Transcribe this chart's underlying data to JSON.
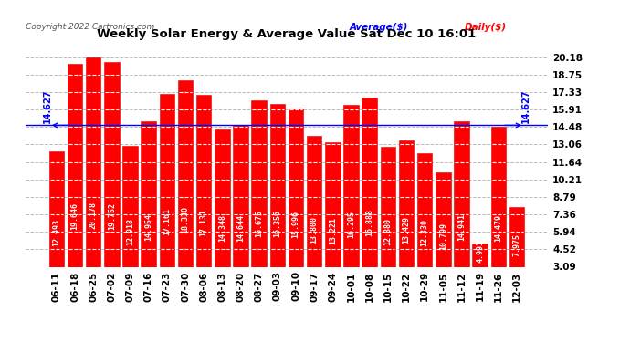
{
  "title": "Weekly Solar Energy & Average Value Sat Dec 10 16:01",
  "copyright": "Copyright 2022 Cartronics.com",
  "average_label": "Average($)",
  "daily_label": "Daily($)",
  "average_value": 14.627,
  "categories": [
    "06-11",
    "06-18",
    "06-25",
    "07-02",
    "07-09",
    "07-16",
    "07-23",
    "07-30",
    "08-06",
    "08-13",
    "08-20",
    "08-27",
    "09-03",
    "09-10",
    "09-17",
    "09-24",
    "10-01",
    "10-08",
    "10-15",
    "10-22",
    "10-29",
    "11-05",
    "11-12",
    "11-19",
    "11-26",
    "12-03"
  ],
  "values": [
    12.493,
    19.646,
    20.178,
    19.752,
    12.918,
    14.954,
    17.161,
    18.33,
    17.131,
    14.348,
    14.644,
    16.675,
    16.356,
    15.996,
    13.8,
    13.221,
    16.295,
    16.888,
    12.88,
    13.429,
    12.33,
    10.799,
    14.941,
    4.991,
    14.479,
    7.975
  ],
  "bar_color": "#ff0000",
  "bar_edge_color": "#dd0000",
  "avg_line_color": "#0000ff",
  "yticks_right": [
    20.18,
    18.75,
    17.33,
    15.91,
    14.48,
    13.06,
    11.64,
    10.21,
    8.79,
    7.36,
    5.94,
    4.52,
    3.09
  ],
  "ymin": 3.09,
  "ymax": 21.5,
  "grid_color": "#bbbbbb",
  "bg_color": "#ffffff",
  "bar_label_color": "#ffffff",
  "bar_label_fontsize": 6.0,
  "tick_fontsize": 7.5,
  "avg_label_fontsize": 7.0
}
